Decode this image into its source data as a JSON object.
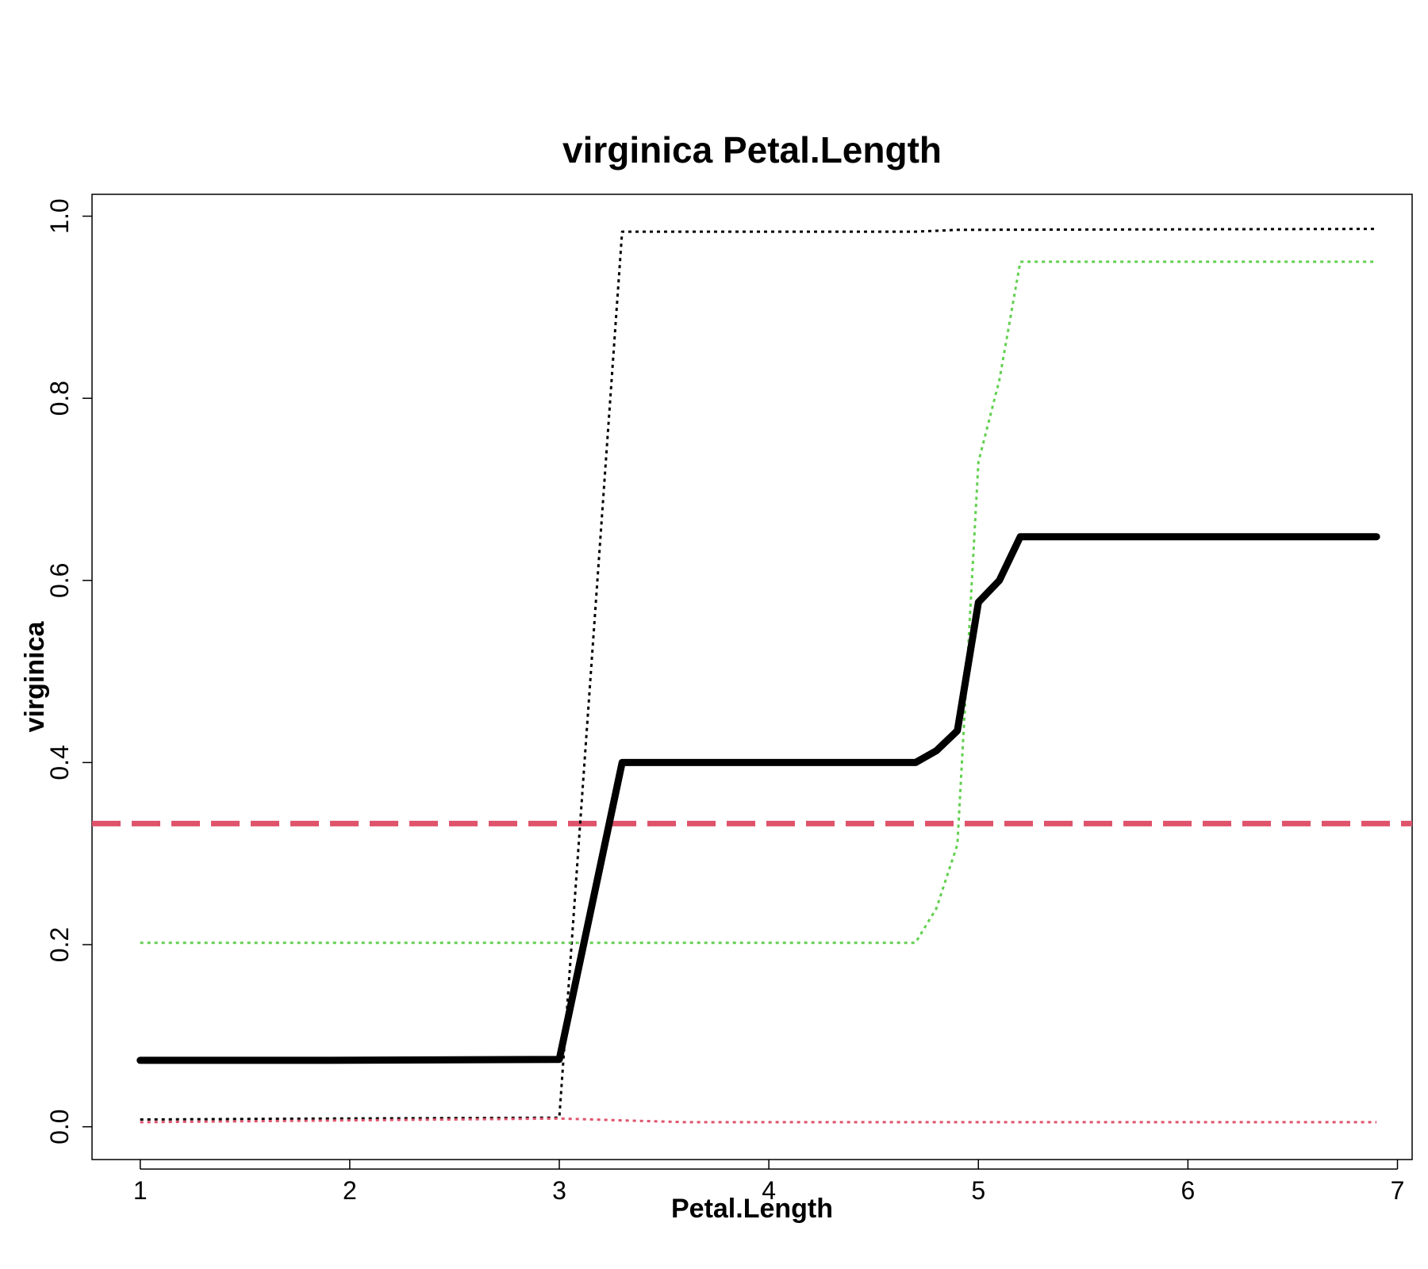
{
  "chart_data": {
    "type": "line",
    "title": "virginica  Petal.Length",
    "xlabel": "Petal.Length",
    "ylabel": "virginica",
    "xlim": [
      0.77,
      7.07
    ],
    "ylim": [
      -0.036,
      1.024
    ],
    "x_ticks": [
      1,
      2,
      3,
      4,
      5,
      6,
      7
    ],
    "x_tick_labels": [
      "1",
      "2",
      "3",
      "4",
      "5",
      "6",
      "7"
    ],
    "y_ticks": [
      0.0,
      0.2,
      0.4,
      0.6,
      0.8,
      1.0
    ],
    "y_tick_labels": [
      "0.0",
      "0.2",
      "0.4",
      "0.6",
      "0.8",
      "1.0"
    ],
    "grid": false,
    "legend": "none",
    "reference_line": {
      "y": 0.333,
      "color": "#DF536B",
      "style": "dashed"
    },
    "series": [
      {
        "color": "#000000",
        "style": "solid-thick",
        "points": [
          [
            1.0,
            0.073
          ],
          [
            1.9,
            0.073
          ],
          [
            3.0,
            0.074
          ],
          [
            3.3,
            0.4
          ],
          [
            4.7,
            0.4
          ],
          [
            4.8,
            0.413
          ],
          [
            4.9,
            0.435
          ],
          [
            5.0,
            0.576
          ],
          [
            5.1,
            0.6
          ],
          [
            5.2,
            0.648
          ],
          [
            6.9,
            0.648
          ]
        ]
      },
      {
        "color": "#000000",
        "style": "dotted",
        "points": [
          [
            1.0,
            0.008
          ],
          [
            1.9,
            0.009
          ],
          [
            3.0,
            0.01
          ],
          [
            3.3,
            0.983
          ],
          [
            4.7,
            0.983
          ],
          [
            4.9,
            0.985
          ],
          [
            6.9,
            0.986
          ]
        ]
      },
      {
        "color": "#61D04F",
        "style": "dotted",
        "points": [
          [
            1.0,
            0.202
          ],
          [
            4.7,
            0.202
          ],
          [
            4.8,
            0.24
          ],
          [
            4.9,
            0.31
          ],
          [
            5.0,
            0.73
          ],
          [
            5.1,
            0.82
          ],
          [
            5.2,
            0.95
          ],
          [
            6.9,
            0.95
          ]
        ]
      },
      {
        "color": "#DF536B",
        "style": "dotted",
        "points": [
          [
            1.0,
            0.005
          ],
          [
            3.0,
            0.009
          ],
          [
            3.6,
            0.005
          ],
          [
            6.9,
            0.005
          ]
        ]
      }
    ]
  }
}
